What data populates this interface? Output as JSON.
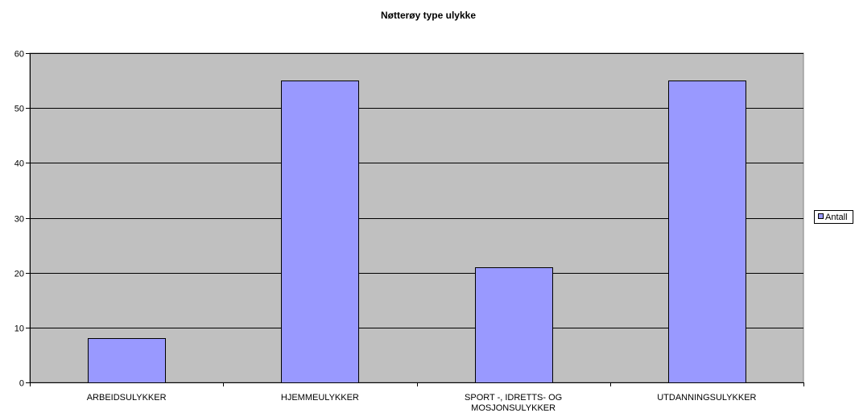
{
  "chart_data": {
    "type": "bar",
    "title": "Nøtterøy type ulykke",
    "xlabel": "",
    "ylabel": "",
    "categories": [
      [
        "ARBEIDSULYKKER"
      ],
      [
        "HJEMMEULYKKER"
      ],
      [
        "SPORT -, IDRETTS- OG",
        "MOSJONSULYKKER"
      ],
      [
        "UTDANNINGSULYKKER"
      ]
    ],
    "series": [
      {
        "name": "Antall",
        "values": [
          8,
          55,
          21,
          55
        ]
      }
    ],
    "ylim": [
      0,
      60
    ],
    "yticks": [
      "0",
      "10",
      "20",
      "30",
      "40",
      "50",
      "60"
    ],
    "grid": true,
    "legend_position": "right",
    "colors": {
      "plot_background": "#c0c0c0",
      "bar_fill": "#9999ff",
      "bar_stroke": "#000000",
      "gridline": "#000000"
    }
  }
}
